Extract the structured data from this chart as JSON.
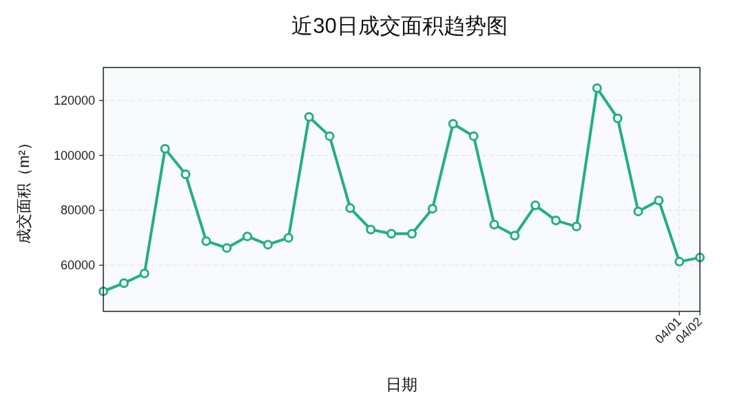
{
  "chart_data": {
    "type": "line",
    "title": "近30日成交面积趋势图",
    "xlabel": "日期",
    "ylabel": "成交面积（m²）",
    "categories": [
      null,
      null,
      null,
      null,
      null,
      null,
      null,
      null,
      null,
      null,
      null,
      null,
      null,
      null,
      null,
      null,
      null,
      null,
      null,
      null,
      null,
      null,
      null,
      null,
      null,
      null,
      null,
      null,
      "04/01",
      "04/02"
    ],
    "series": [
      {
        "color": "#20b07f",
        "values": [
          50500,
          53500,
          57000,
          102400,
          93100,
          68800,
          66300,
          70500,
          67500,
          70000,
          114000,
          107000,
          80800,
          73000,
          71500,
          71500,
          80600,
          111500,
          107000,
          74800,
          70800,
          81800,
          76300,
          74100,
          124500,
          113500,
          79600,
          83600,
          61300,
          62800
        ]
      }
    ],
    "ylim": [
      43200,
      132000
    ],
    "yticks": [
      60000,
      80000,
      100000,
      120000
    ],
    "grid": true,
    "marker": "circle",
    "line_style": "solid"
  }
}
